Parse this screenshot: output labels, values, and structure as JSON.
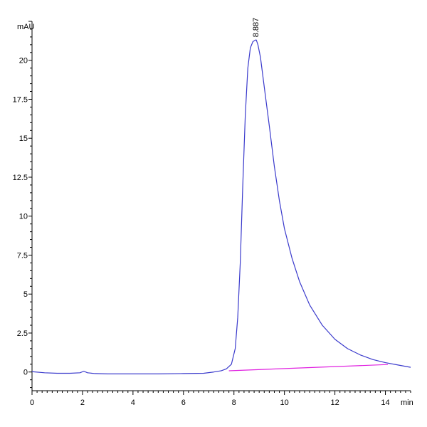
{
  "chart_data": {
    "type": "line",
    "title": "",
    "xlabel": "min",
    "ylabel": "mAU",
    "xlim": [
      0,
      15
    ],
    "ylim": [
      -1.2,
      22.5
    ],
    "grid": false,
    "legend": "none",
    "x_ticks": [
      0,
      2,
      4,
      6,
      8,
      10,
      12,
      14
    ],
    "x_tick_labels": [
      "0",
      "2",
      "4",
      "6",
      "8",
      "10",
      "12",
      "14"
    ],
    "y_ticks": [
      0,
      2.5,
      5,
      7.5,
      10,
      12.5,
      15,
      17.5,
      20
    ],
    "y_tick_labels": [
      "0",
      "2.5",
      "5",
      "7.5",
      "10",
      "12.5",
      "15",
      "17.5",
      "20"
    ],
    "series": [
      {
        "color": "#3a3acc",
        "x": [
          0,
          0.5,
          1,
          1.5,
          1.9,
          2.05,
          2.2,
          2.5,
          3,
          4,
          5,
          6,
          6.8,
          7.2,
          7.5,
          7.7,
          7.9,
          8.05,
          8.15,
          8.25,
          8.35,
          8.45,
          8.55,
          8.65,
          8.75,
          8.85,
          8.887,
          8.95,
          9.05,
          9.2,
          9.4,
          9.6,
          9.8,
          10.0,
          10.3,
          10.6,
          11.0,
          11.5,
          12.0,
          12.5,
          13.0,
          13.5,
          14.0,
          14.5,
          15.0
        ],
        "y": [
          0.02,
          -0.05,
          -0.08,
          -0.08,
          -0.05,
          0.05,
          -0.05,
          -0.1,
          -0.12,
          -0.12,
          -0.12,
          -0.1,
          -0.08,
          0.0,
          0.08,
          0.2,
          0.5,
          1.5,
          3.5,
          7.0,
          12.0,
          16.5,
          19.5,
          20.8,
          21.2,
          21.3,
          21.3,
          21.0,
          20.2,
          18.3,
          15.8,
          13.2,
          11.0,
          9.2,
          7.3,
          5.8,
          4.3,
          3.0,
          2.1,
          1.5,
          1.1,
          0.8,
          0.6,
          0.45,
          0.3
        ]
      },
      {
        "color": "#e020e0",
        "x": [
          7.8,
          14.1
        ],
        "y": [
          0.08,
          0.48
        ]
      }
    ],
    "annotations": [
      {
        "text": "8.887",
        "x": 8.887,
        "y": 21.3
      }
    ]
  }
}
